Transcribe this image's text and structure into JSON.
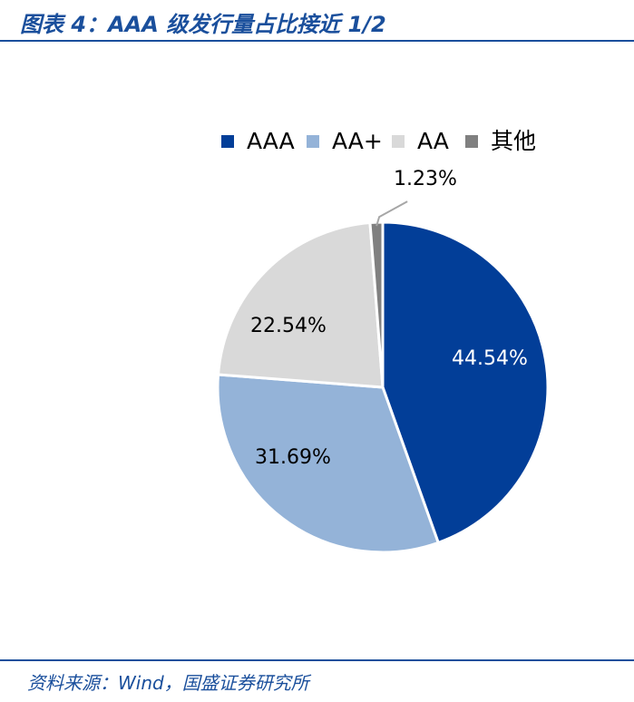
{
  "header": {
    "title": "图表 4：AAA 级发行量占比接近 1/2"
  },
  "footer": {
    "source": "资料来源：Wind，国盛证券研究所"
  },
  "chart_data": {
    "type": "pie",
    "title": "",
    "legend_position": "top",
    "categories": [
      "AAA",
      "AA+",
      "AA",
      "其他"
    ],
    "values": [
      44.54,
      31.69,
      22.54,
      1.23
    ],
    "labels": [
      "44.54%",
      "31.69%",
      "22.54%",
      "1.23%"
    ],
    "colors": [
      "#023e98",
      "#94b3d8",
      "#d9d9d9",
      "#808080"
    ],
    "label_colors": [
      "#ffffff",
      "#000000",
      "#000000",
      "#000000"
    ]
  }
}
